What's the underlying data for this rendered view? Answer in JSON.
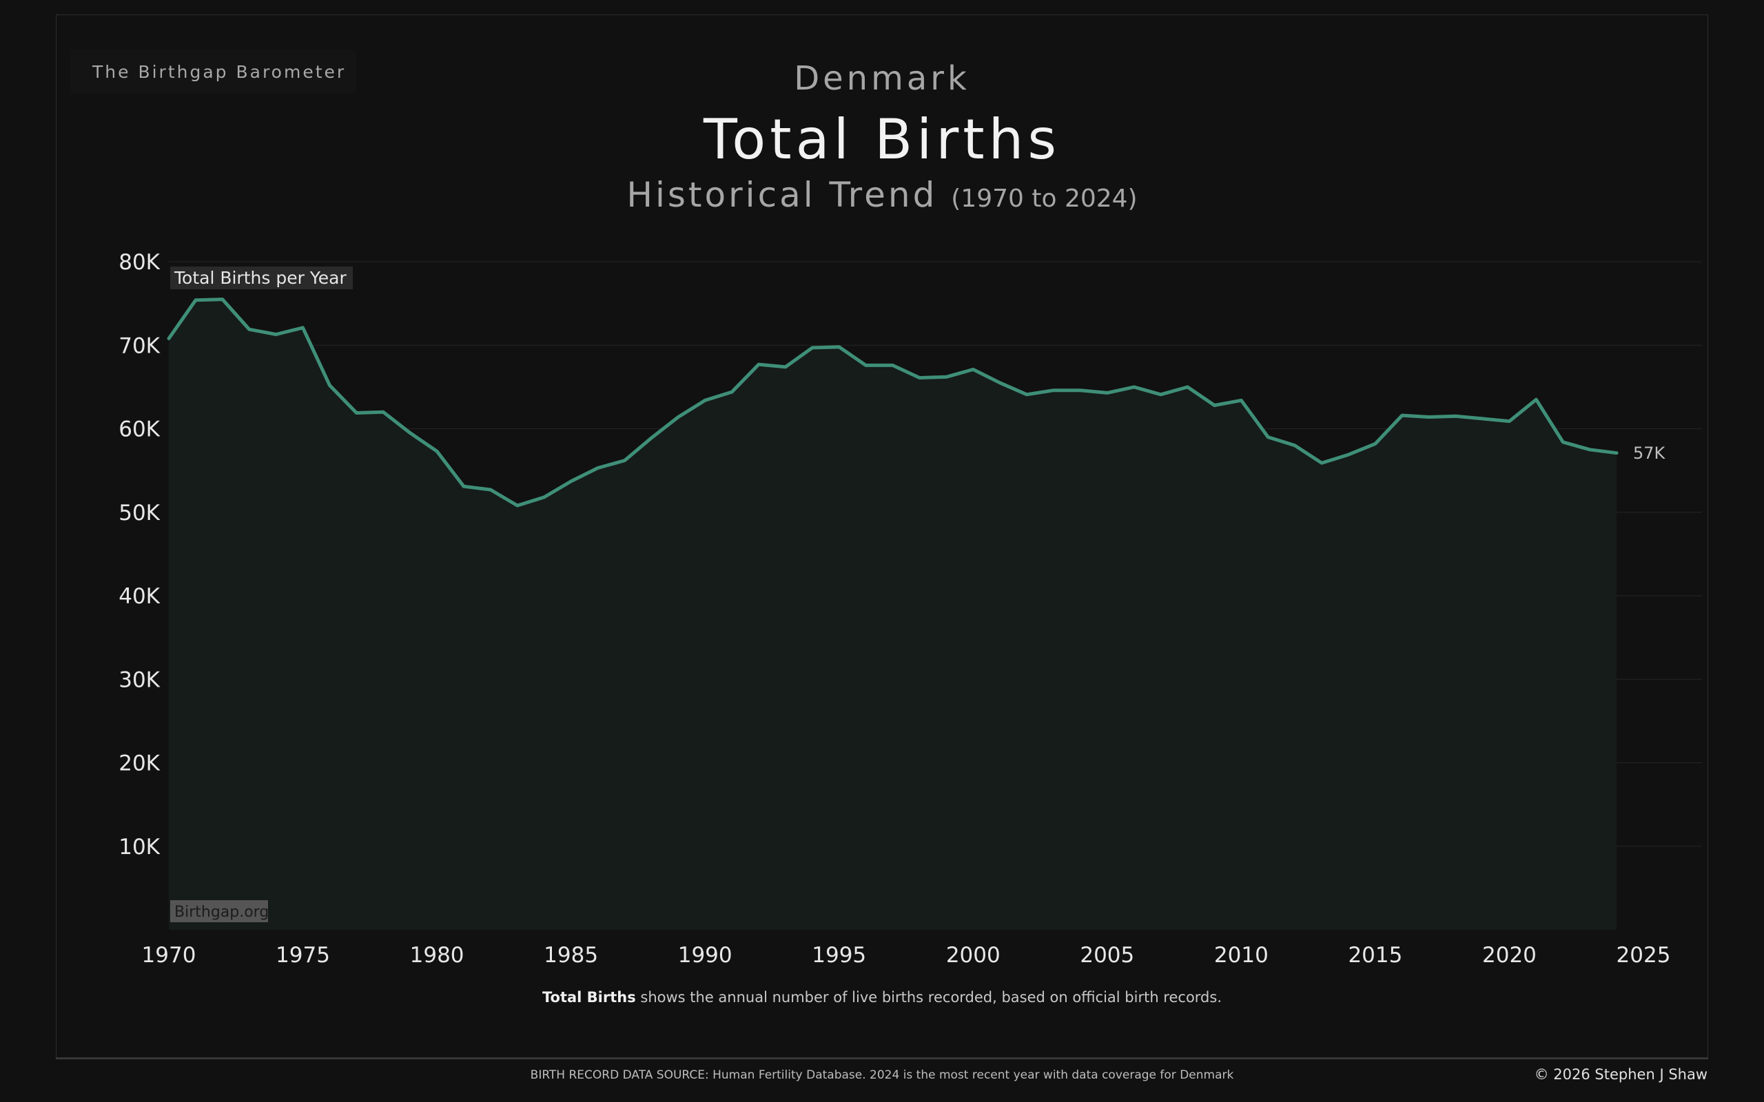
{
  "brand": "The Birthgap Barometer",
  "header": {
    "country": "Denmark",
    "title": "Total Births",
    "subtitle": "Historical Trend",
    "range": "(1970 to 2024)"
  },
  "chart_data": {
    "type": "area",
    "series_label": "Total Births per Year",
    "watermark": "Birthgap.org",
    "end_label": "57K",
    "x": [
      1970,
      1971,
      1972,
      1973,
      1974,
      1975,
      1976,
      1977,
      1978,
      1979,
      1980,
      1981,
      1982,
      1983,
      1984,
      1985,
      1986,
      1987,
      1988,
      1989,
      1990,
      1991,
      1992,
      1993,
      1994,
      1995,
      1996,
      1997,
      1998,
      1999,
      2000,
      2001,
      2002,
      2003,
      2004,
      2005,
      2006,
      2007,
      2008,
      2009,
      2010,
      2011,
      2012,
      2013,
      2014,
      2015,
      2016,
      2017,
      2018,
      2019,
      2020,
      2021,
      2022,
      2023,
      2024
    ],
    "values": [
      70800,
      75400,
      75500,
      71900,
      71300,
      72100,
      65200,
      61900,
      62000,
      59500,
      57300,
      53100,
      52700,
      50800,
      51800,
      53700,
      55300,
      56200,
      58900,
      61400,
      63400,
      64400,
      67700,
      67400,
      69700,
      69800,
      67600,
      67600,
      66100,
      66200,
      67100,
      65500,
      64100,
      64600,
      64600,
      64300,
      65000,
      64100,
      65000,
      62800,
      63400,
      59000,
      58000,
      55900,
      56900,
      58200,
      61600,
      61400,
      61500,
      61200,
      60900,
      63500,
      58400,
      57500,
      57100
    ],
    "ylim": [
      0,
      80000
    ],
    "yticks": [
      "10K",
      "20K",
      "30K",
      "40K",
      "50K",
      "60K",
      "70K",
      "80K"
    ],
    "ytick_values": [
      10000,
      20000,
      30000,
      40000,
      50000,
      60000,
      70000,
      80000
    ],
    "xticks": [
      "1970",
      "1975",
      "1980",
      "1985",
      "1990",
      "1995",
      "2000",
      "2005",
      "2010",
      "2015",
      "2020",
      "2025"
    ],
    "xtick_values": [
      1970,
      1975,
      1980,
      1985,
      1990,
      1995,
      2000,
      2005,
      2010,
      2015,
      2020,
      2025
    ],
    "grid": true,
    "colors": {
      "line": "#3f8f78",
      "fill": "#161c1a",
      "grid": "#252525"
    }
  },
  "caption": {
    "bold": "Total Births",
    "text": " shows the annual number of live births recorded, based on official birth records."
  },
  "footer": {
    "source": "BIRTH RECORD DATA SOURCE: Human Fertility Database. 2024 is the most recent year with data coverage for Denmark",
    "copyright": "© 2026 Stephen J Shaw"
  }
}
